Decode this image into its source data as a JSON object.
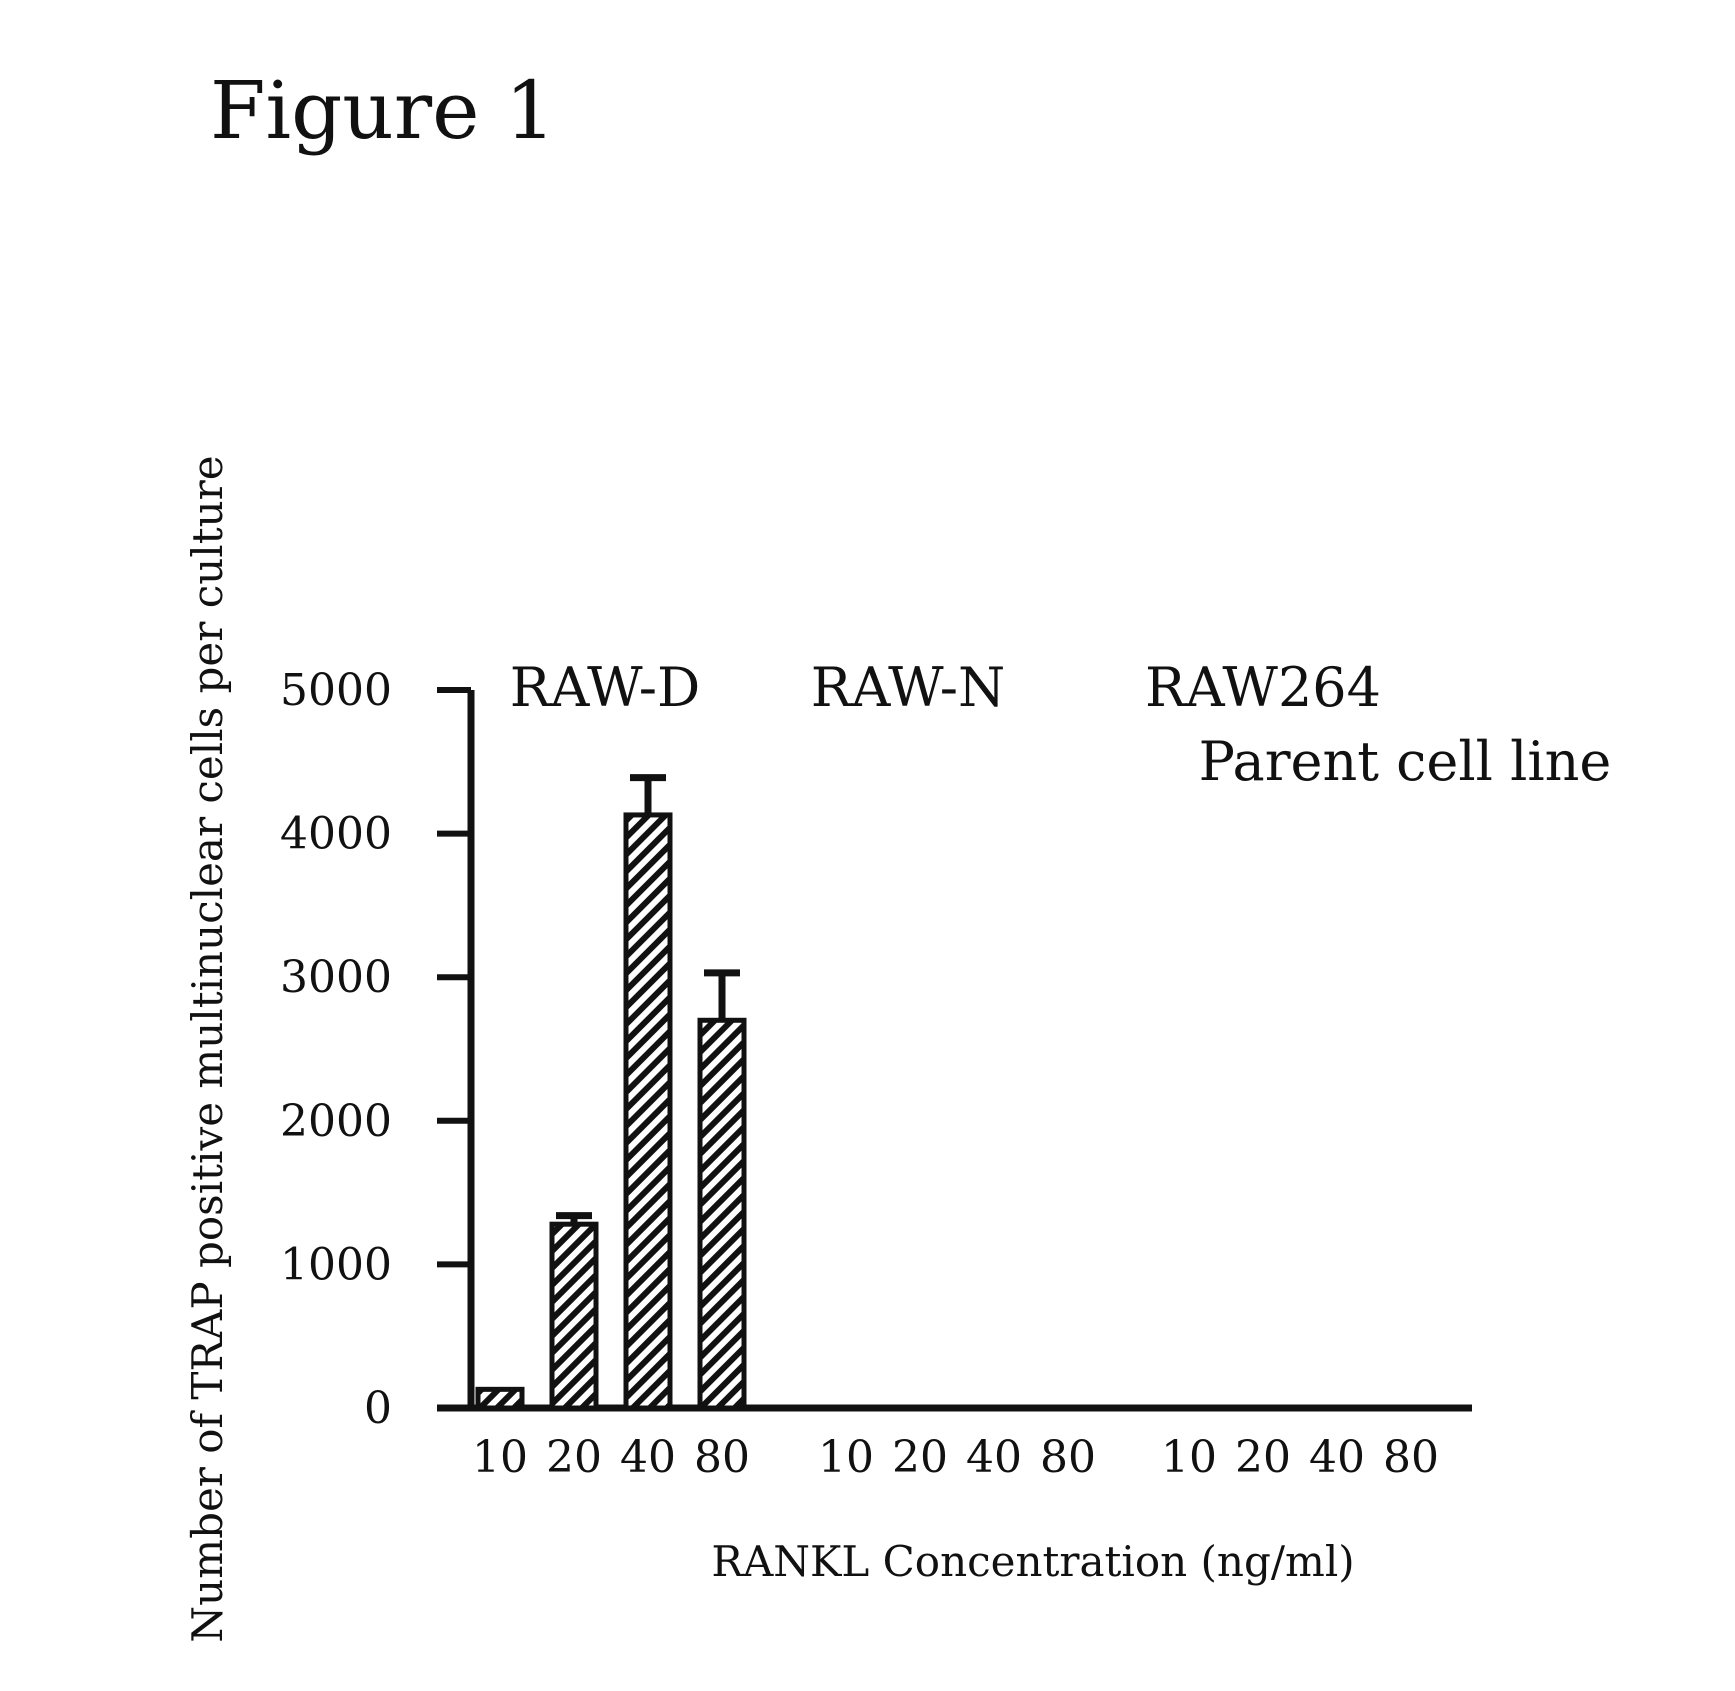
{
  "figure_title": "Figure 1",
  "chart_data": {
    "type": "bar",
    "title": "",
    "ylabel": "Number of TRAP positive multinuclear cells per culture",
    "xlabel": "RANKL Concentration (ng/ml)",
    "ylim": [
      0,
      5000
    ],
    "yticks": [
      0,
      1000,
      2000,
      3000,
      4000,
      5000
    ],
    "grid": false,
    "groups": [
      {
        "name": "RAW-D",
        "subtitle": "",
        "categories": [
          "10",
          "20",
          "40",
          "80"
        ],
        "values": [
          130,
          1280,
          4130,
          2700
        ],
        "errors": [
          0,
          60,
          260,
          330
        ]
      },
      {
        "name": "RAW-N",
        "subtitle": "",
        "categories": [
          "10",
          "20",
          "40",
          "80"
        ],
        "values": [
          0,
          0,
          0,
          0
        ],
        "errors": [
          0,
          0,
          0,
          0
        ]
      },
      {
        "name": "RAW264",
        "subtitle": "Parent cell line",
        "categories": [
          "10",
          "20",
          "40",
          "80"
        ],
        "values": [
          0,
          0,
          0,
          0
        ],
        "errors": [
          0,
          0,
          0,
          0
        ]
      }
    ],
    "bar_fill": "hatched",
    "colors": {
      "bar_stroke": "#111111",
      "hatch": "#111111",
      "background": "#ffffff"
    }
  }
}
